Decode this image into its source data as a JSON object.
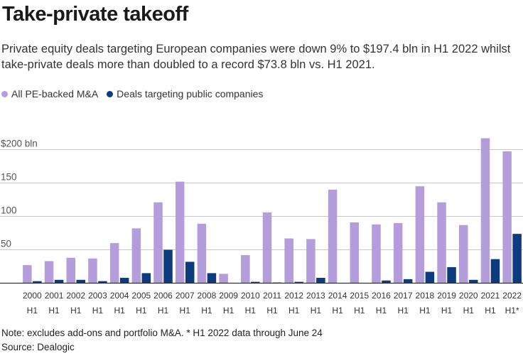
{
  "title": "Take-private takeoff",
  "subtitle": "Private equity deals targeting European companies were down 9% to $197.4 bln in H1 2022 whilst take-private deals more than doubled to a record $73.8 bln vs. H1 2021.",
  "legend": {
    "series_a": "All PE-backed M&A",
    "series_b": "Deals targeting public companies"
  },
  "colors": {
    "series_a": "#b39ddb",
    "series_b": "#0d3c7e",
    "grid": "#c8c8c8",
    "axis": "#333333"
  },
  "note": "Note: excludes add-ons and portfolio M&A. * H1 2022 data through June 24",
  "source": "Source: Dealogic",
  "chart_data": {
    "type": "bar",
    "title": "Take-private takeoff",
    "categories": [
      "2000",
      "2001",
      "2002",
      "2003",
      "2004",
      "2005",
      "2006",
      "2007",
      "2008",
      "2009",
      "2010",
      "2011",
      "2012",
      "2013",
      "2014",
      "2015",
      "2016",
      "2017",
      "2018",
      "2019",
      "2020",
      "2021",
      "2022"
    ],
    "period_labels": [
      "H1",
      "H1",
      "H1",
      "H1",
      "H1",
      "H1",
      "H1",
      "H1",
      "H1",
      "H1",
      "H1",
      "H1",
      "H1",
      "H1",
      "H1",
      "H1",
      "H1",
      "H1",
      "H1",
      "H1",
      "H1",
      "H1",
      "H1*"
    ],
    "series": [
      {
        "name": "All PE-backed M&A",
        "values": [
          27,
          33,
          38,
          37,
          60,
          82,
          121,
          152,
          89,
          14,
          42,
          106,
          67,
          66,
          140,
          91,
          88,
          90,
          145,
          121,
          87,
          217,
          197.4
        ]
      },
      {
        "name": "Deals targeting public companies",
        "values": [
          3,
          5,
          5,
          3,
          8,
          15,
          50,
          32,
          15,
          0,
          2,
          1,
          2,
          8,
          0,
          0,
          4,
          6,
          17,
          24,
          5,
          36,
          73.8
        ]
      }
    ],
    "y_ticks": [
      {
        "value": 50,
        "label": "50"
      },
      {
        "value": 100,
        "label": "100"
      },
      {
        "value": 150,
        "label": "150"
      },
      {
        "value": 200,
        "label": "$200 bln"
      }
    ],
    "ylim": [
      0,
      220
    ],
    "xlabel": "",
    "ylabel": ""
  }
}
